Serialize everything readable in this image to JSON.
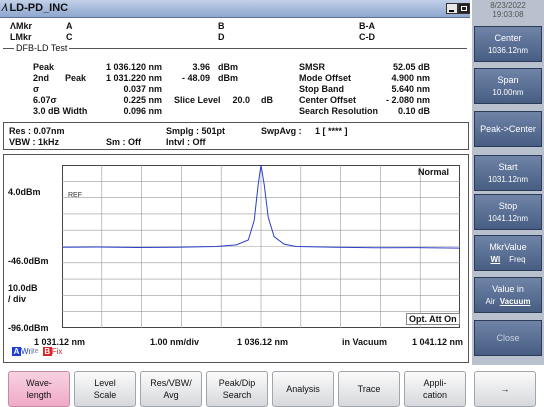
{
  "window": {
    "title": "LD-PD_INC"
  },
  "markers": {
    "dmkr_label": "ΛMkr",
    "lmkr_label": "LMkr",
    "a": "A",
    "b": "B",
    "ba": "B-A",
    "c": "C",
    "d": "D",
    "cd": "C-D"
  },
  "test": {
    "title": "DFB-LD Test",
    "peak_label": "Peak",
    "peak_wl": "1 036.120 nm",
    "peak_lvl": "3.96",
    "peak_unit": "dBm",
    "second_label": "2nd",
    "second_sub": "Peak",
    "second_wl": "1 031.220 nm",
    "second_lvl": "- 48.09",
    "second_unit": "dBm",
    "sigma_label": "σ",
    "sigma_val": "0.037 nm",
    "six_sigma_label": "6.07σ",
    "six_sigma_val": "0.225 nm",
    "slice_label": "Slice Level",
    "slice_val": "20.0",
    "slice_unit": "dB",
    "width_label": "3.0   dB Width",
    "width_val": "0.096 nm",
    "smsr_label": "SMSR",
    "smsr_val": "52.05 dB",
    "mode_label": "Mode Offset",
    "mode_val": "4.900 nm",
    "stop_label": "Stop Band",
    "stop_val": "5.640 nm",
    "center_label": "Center Offset",
    "center_val": "- 2.080 nm",
    "res_label": "Search Resolution",
    "res_val": "0.10  dB"
  },
  "settings": {
    "res": "Res : 0.07nm",
    "vbw": "VBW :    1kHz",
    "sm": "Sm :   Off",
    "smplg": "Smplg :    501pt",
    "intvl": "Intvl :    Off",
    "swpavg": "SwpAvg :",
    "swpavg_val": "1 [    ****  ]"
  },
  "chart": {
    "y_labels": [
      "4.0dBm",
      "-46.0dBm",
      "10.0dB",
      "/ div",
      "-96.0dBm"
    ],
    "x_labels": [
      "1 031.12 nm",
      "1.00 nm/div",
      "1 036.12 nm",
      "in Vacuum",
      "1 041.12 nm"
    ],
    "ref": "REF",
    "normal_tag": "Normal",
    "opt_tag": "Opt. Att On",
    "legend_a_letter": "A",
    "legend_a_text": "Wri",
    "legend_a_extra": "te",
    "legend_b_letter": "B",
    "legend_b_text": "Fix"
  },
  "chart_data": {
    "type": "line",
    "x_range": [
      1031.12,
      1041.12
    ],
    "y_range": [
      -96.0,
      4.0
    ],
    "x_unit": "nm",
    "y_unit": "dBm",
    "grid": true,
    "series": [
      {
        "x": [
          1031.12,
          1032.0,
          1033.0,
          1034.0,
          1035.0,
          1035.5,
          1035.8,
          1035.95,
          1036.05,
          1036.12,
          1036.2,
          1036.3,
          1036.45,
          1036.7,
          1037.0,
          1038.0,
          1039.0,
          1040.0,
          1041.12
        ],
        "y": [
          -46.5,
          -46.3,
          -46.6,
          -46.4,
          -46.0,
          -45.0,
          -42.0,
          -30.0,
          -8.0,
          3.96,
          -8.0,
          -28.0,
          -40.0,
          -44.5,
          -46.0,
          -46.4,
          -46.8,
          -46.7,
          -47.0
        ]
      }
    ]
  },
  "side": {
    "date": "8/23/2022",
    "time": "19:03:08",
    "center_label": "Center",
    "center_val": "1036.12nm",
    "span_label": "Span",
    "span_val": "10.00nm",
    "peak_center": "Peak->Center",
    "start_label": "Start",
    "start_val": "1031.12nm",
    "stop_label": "Stop",
    "stop_val": "1041.12nm",
    "mkr_label": "MkrValue",
    "mkr_wl": "Wl",
    "mkr_freq": "Freq",
    "valuein_label": "Value in",
    "valuein_air": "Air",
    "valuein_vac": "Vacuum",
    "close": "Close"
  },
  "bottom": [
    {
      "l1": "Wave-",
      "l2": "length"
    },
    {
      "l1": "Level",
      "l2": "Scale"
    },
    {
      "l1": "Res/VBW/",
      "l2": "Avg"
    },
    {
      "l1": "Peak/Dip",
      "l2": "Search"
    },
    {
      "l1": "Analysis",
      "l2": ""
    },
    {
      "l1": "Trace",
      "l2": ""
    },
    {
      "l1": "Appli-",
      "l2": "cation"
    },
    {
      "l1": "→",
      "l2": ""
    }
  ]
}
